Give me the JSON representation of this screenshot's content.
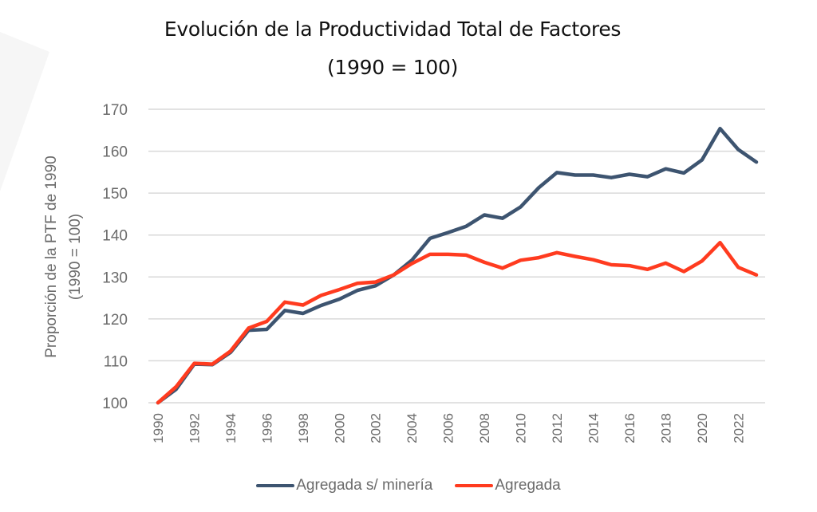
{
  "chart_data": {
    "type": "line",
    "title": "Evolución de la Productividad Total de Factores",
    "subtitle": "(1990 = 100)",
    "xlabel": "",
    "ylabel": "Proporción de la PTF de 1990",
    "ylabel2": "(1990 = 100)",
    "ylim": [
      100,
      170
    ],
    "yticks": [
      100,
      110,
      120,
      130,
      140,
      150,
      160,
      170
    ],
    "xlim": [
      1990,
      2023
    ],
    "xticks": [
      "1990",
      "1992",
      "1994",
      "1996",
      "1998",
      "2000",
      "2002",
      "2004",
      "2006",
      "2008",
      "2010",
      "2012",
      "2014",
      "2016",
      "2018",
      "2020",
      "2022"
    ],
    "grid": "horizontal",
    "legend_position": "bottom",
    "x": [
      1990,
      1991,
      1992,
      1993,
      1994,
      1995,
      1996,
      1997,
      1998,
      1999,
      2000,
      2001,
      2002,
      2003,
      2004,
      2005,
      2006,
      2007,
      2008,
      2009,
      2010,
      2011,
      2012,
      2013,
      2014,
      2015,
      2016,
      2017,
      2018,
      2019,
      2020,
      2021,
      2022,
      2023
    ],
    "series": [
      {
        "name": "Agregada s/ minería",
        "color": "#3d5470",
        "values": [
          100,
          103.2,
          109.2,
          109.1,
          112.0,
          117.3,
          117.5,
          122.0,
          121.3,
          123.2,
          124.7,
          126.8,
          127.9,
          130.5,
          134.0,
          139.2,
          140.6,
          142.1,
          144.8,
          144.0,
          146.7,
          151.3,
          154.9,
          154.3,
          154.3,
          153.7,
          154.5,
          153.9,
          155.8,
          154.8,
          157.9,
          165.4,
          160.4,
          157.4
        ]
      },
      {
        "name": "Agregada",
        "color": "#ff3b1f",
        "values": [
          100,
          103.8,
          109.4,
          109.2,
          112.3,
          117.8,
          119.4,
          124.0,
          123.3,
          125.6,
          127.0,
          128.5,
          128.8,
          130.5,
          133.2,
          135.4,
          135.4,
          135.2,
          133.5,
          132.1,
          134.0,
          134.6,
          135.8,
          134.9,
          134.1,
          132.9,
          132.7,
          131.8,
          133.3,
          131.3,
          133.8,
          138.2,
          132.3,
          130.5
        ]
      }
    ]
  }
}
